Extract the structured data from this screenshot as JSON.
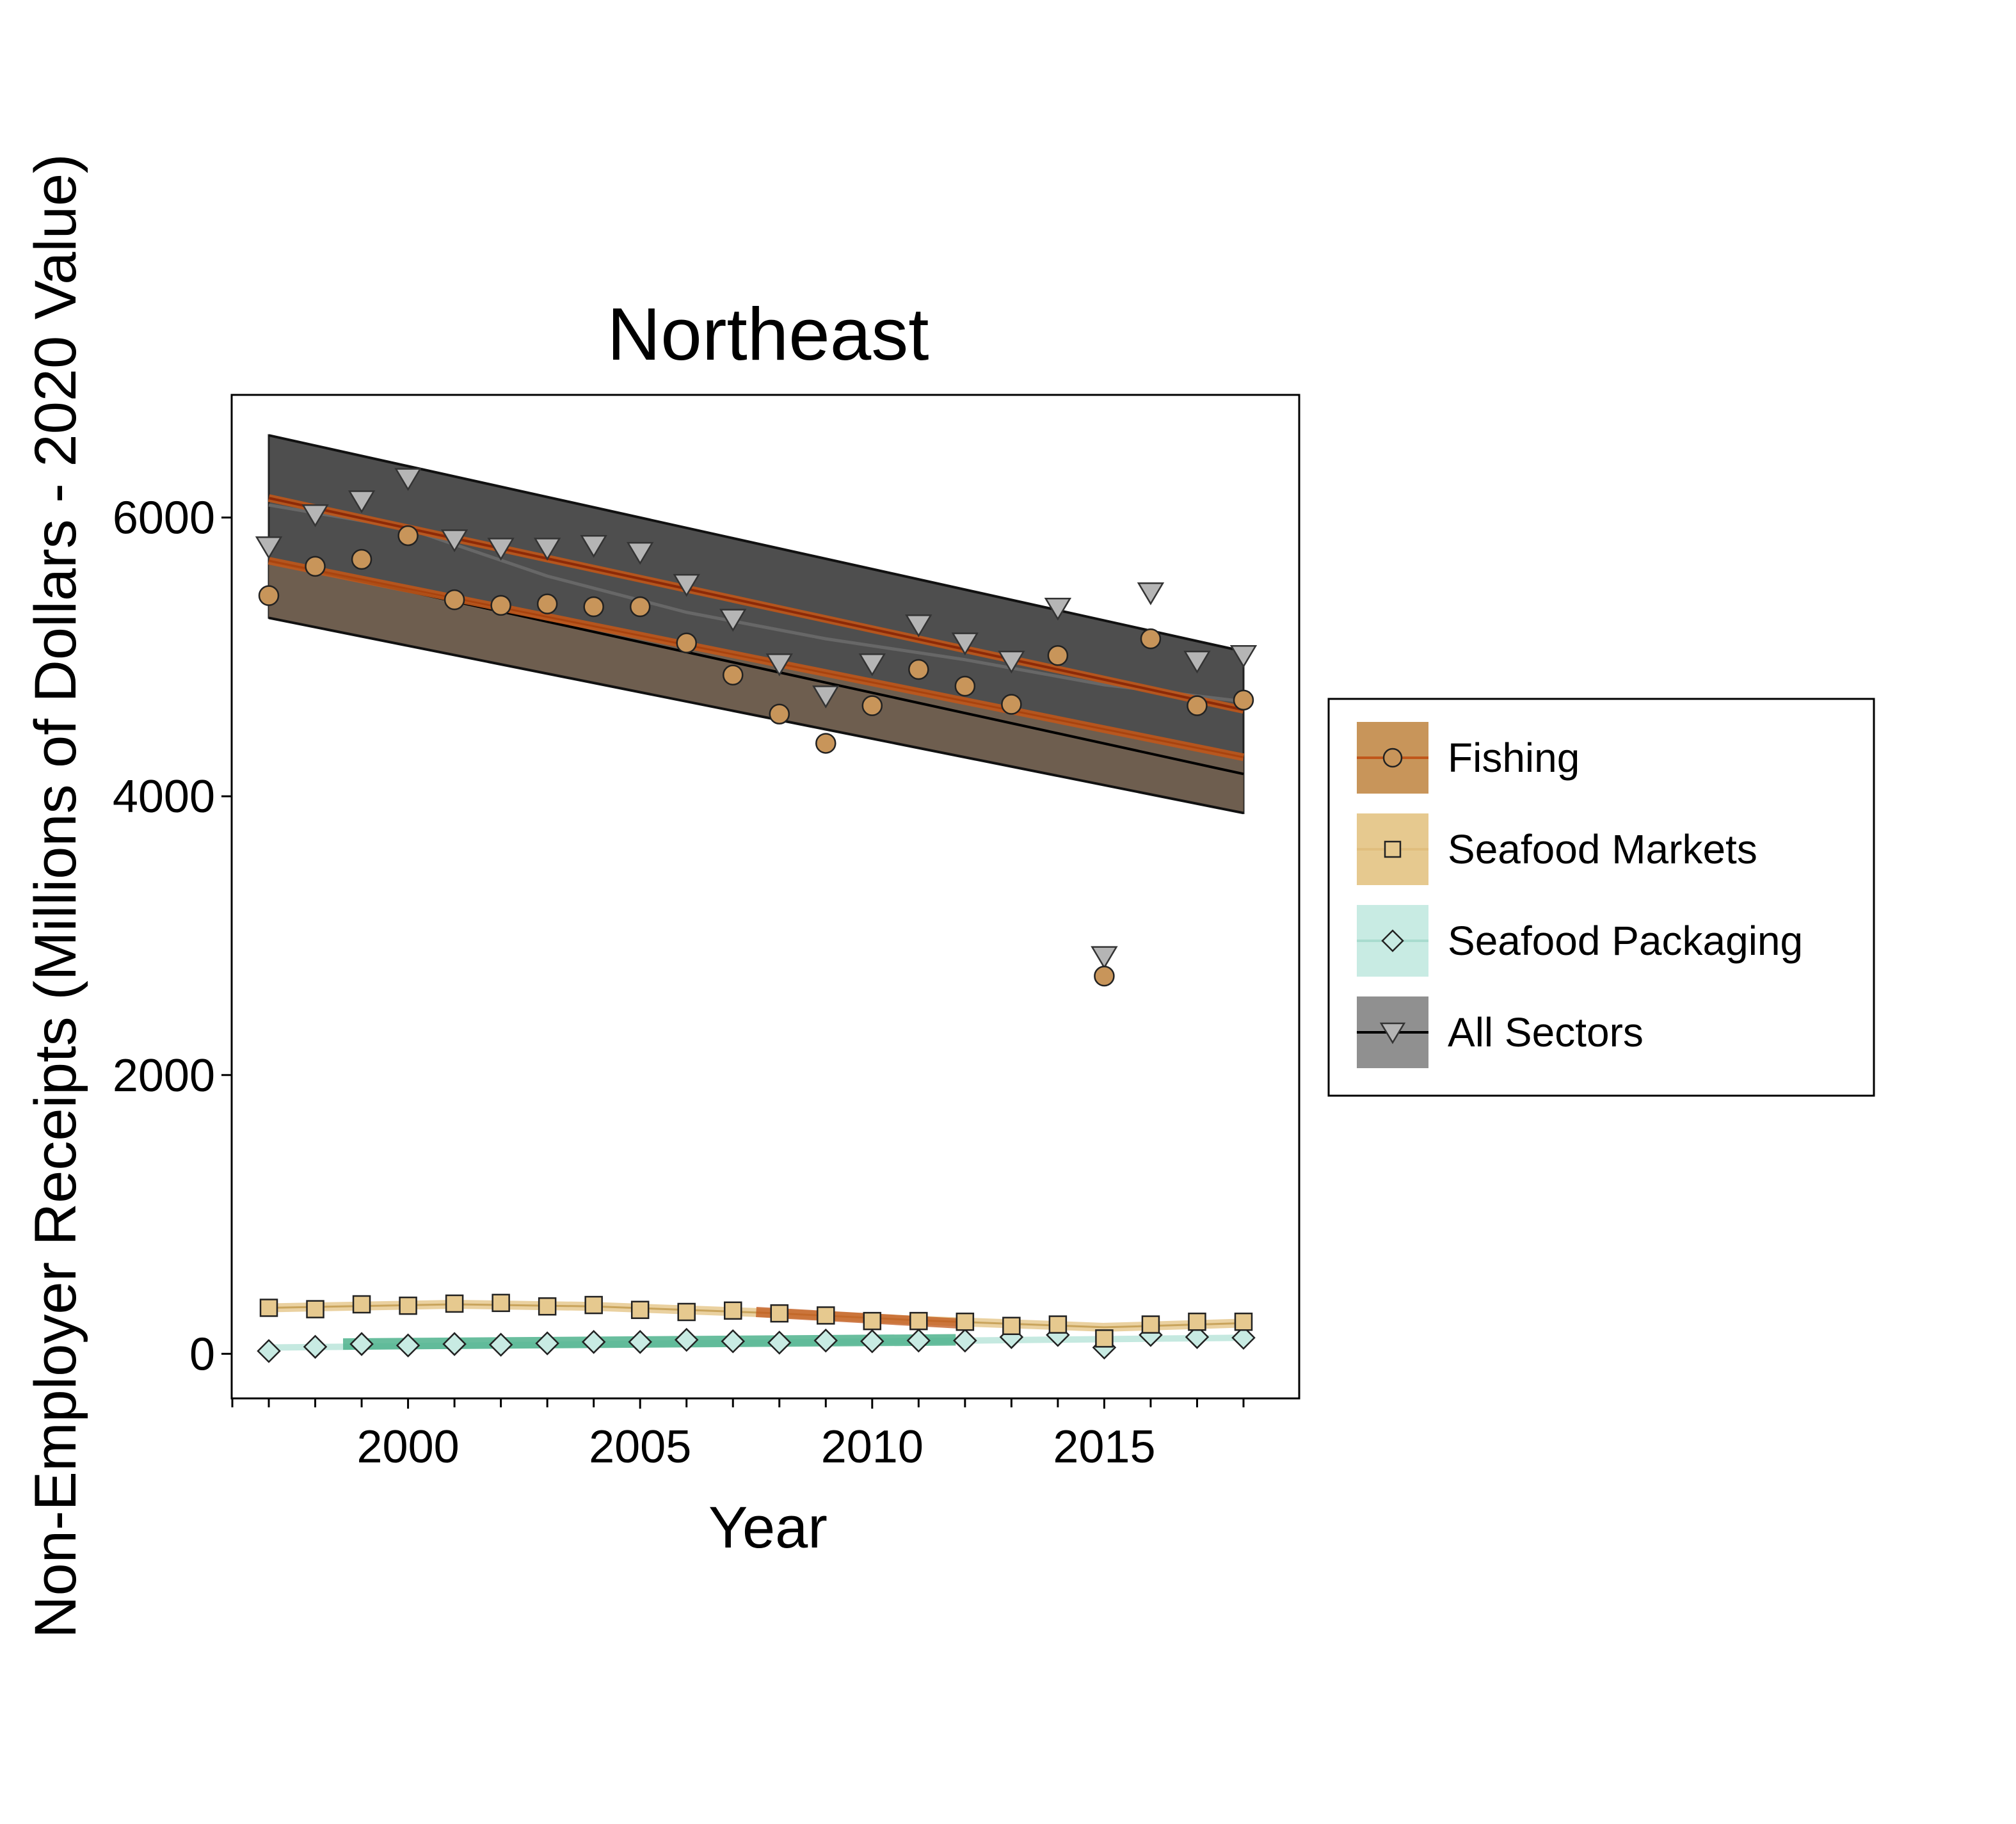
{
  "chart_data": {
    "type": "scatter",
    "title": "Northeast",
    "xlabel": "Year",
    "ylabel": "Non-Employer Receipts (Millions of Dollars - 2020 Value)",
    "xlim": [
      1996.2,
      2019.2
    ],
    "ylim": [
      -320,
      6880
    ],
    "x_ticks": [
      2000,
      2005,
      2010,
      2015
    ],
    "y_ticks": [
      0,
      2000,
      4000,
      6000
    ],
    "x_minor_ticks": [
      1997,
      1998,
      1999,
      2001,
      2002,
      2003,
      2004,
      2006,
      2007,
      2008,
      2009,
      2011,
      2012,
      2013,
      2014,
      2016,
      2017,
      2018
    ],
    "grid": false,
    "legend_position": "right",
    "series": [
      {
        "name": "Fishing",
        "marker": "circle",
        "color": "#c8955a",
        "line_color": "#c0561a",
        "x": [
          1997,
          1998,
          1999,
          2000,
          2001,
          2002,
          2003,
          2004,
          2005,
          2006,
          2007,
          2008,
          2009,
          2010,
          2011,
          2012,
          2013,
          2014,
          2015,
          2016,
          2017,
          2018
        ],
        "values": [
          5440,
          5650,
          5700,
          5870,
          5410,
          5370,
          5380,
          5360,
          5360,
          5100,
          4870,
          4590,
          4380,
          4650,
          4910,
          4790,
          4660,
          5010,
          2710,
          5130,
          4650,
          4690
        ],
        "trend": [
          [
            1997,
            5690
          ],
          [
            2018,
            4280
          ]
        ]
      },
      {
        "name": "Seafood Markets",
        "marker": "square",
        "color": "#e6c98f",
        "line_color": "#d9b26a",
        "x": [
          1997,
          1998,
          1999,
          2000,
          2001,
          2002,
          2003,
          2004,
          2005,
          2006,
          2007,
          2008,
          2009,
          2010,
          2011,
          2012,
          2013,
          2014,
          2015,
          2016,
          2017,
          2018
        ],
        "values": [
          330,
          320,
          355,
          345,
          360,
          365,
          340,
          350,
          315,
          300,
          310,
          290,
          275,
          235,
          235,
          230,
          200,
          210,
          110,
          210,
          230,
          230
        ],
        "trend": [
          [
            1997,
            330
          ],
          [
            2001,
            355
          ],
          [
            2004,
            340
          ],
          [
            2008,
            290
          ],
          [
            2011,
            240
          ],
          [
            2015,
            190
          ],
          [
            2018,
            220
          ]
        ]
      },
      {
        "name": "Seafood Packaging",
        "marker": "diamond",
        "color": "#c8ebe3",
        "line_color": "#4fb38d",
        "x": [
          1997,
          1998,
          1999,
          2000,
          2001,
          2002,
          2003,
          2004,
          2005,
          2006,
          2007,
          2008,
          2009,
          2010,
          2011,
          2012,
          2013,
          2014,
          2015,
          2016,
          2017,
          2018
        ],
        "values": [
          20,
          50,
          70,
          60,
          70,
          65,
          75,
          85,
          85,
          100,
          90,
          80,
          95,
          90,
          95,
          95,
          120,
          135,
          45,
          135,
          120,
          115
        ],
        "trend": [
          [
            1997,
            45
          ],
          [
            2018,
            115
          ]
        ]
      },
      {
        "name": "All Sectors",
        "marker": "triangle-down",
        "color": "#b5b5b5",
        "line_color": "#000000",
        "x": [
          1997,
          1998,
          1999,
          2000,
          2001,
          2002,
          2003,
          2004,
          2005,
          2006,
          2007,
          2008,
          2009,
          2010,
          2011,
          2012,
          2013,
          2014,
          2015,
          2016,
          2017,
          2018
        ],
        "values": [
          5790,
          6020,
          6120,
          6280,
          5840,
          5780,
          5780,
          5800,
          5750,
          5520,
          5270,
          4950,
          4720,
          4950,
          5230,
          5100,
          4970,
          5350,
          2850,
          5460,
          4970,
          5010
        ],
        "trend": [
          [
            1997,
            5690
          ],
          [
            2018,
            4160
          ]
        ],
        "smooth": [
          [
            1997,
            6090
          ],
          [
            2000,
            5920
          ],
          [
            2003,
            5580
          ],
          [
            2006,
            5320
          ],
          [
            2009,
            5130
          ],
          [
            2012,
            4980
          ],
          [
            2015,
            4800
          ],
          [
            2018,
            4680
          ]
        ],
        "band_lower": [
          [
            1997,
            5280
          ],
          [
            2018,
            3880
          ]
        ],
        "band_upper": [
          [
            1997,
            6590
          ],
          [
            2018,
            5040
          ]
        ]
      }
    ],
    "colors": {
      "fishing_fill": "#c8955a",
      "fishing_line": "#c0561a",
      "fishing_dark_line": "#8c2a08",
      "markets_fill": "#e6c98f",
      "packaging_fill": "#c8ebe3",
      "packaging_line": "#4fb38d",
      "all_band": "#4e4e4e",
      "all_point": "#b5b5b5"
    }
  }
}
